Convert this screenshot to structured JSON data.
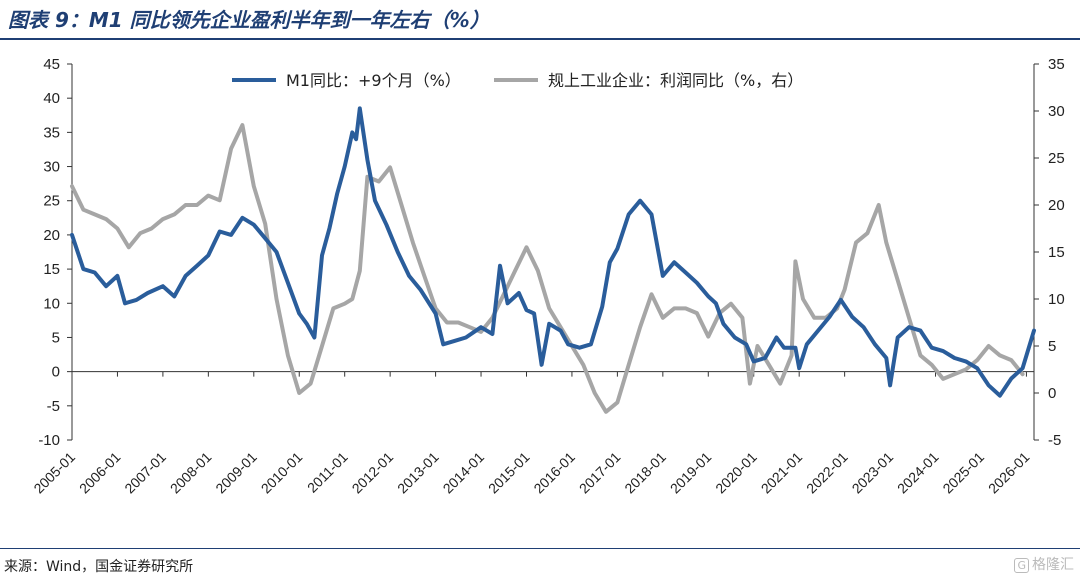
{
  "header": {
    "title": "图表 9：M1 同比领先企业盈利半年到一年左右（%）"
  },
  "footer": {
    "source": "来源：Wind，国金证券研究所",
    "watermark_text": "格隆汇"
  },
  "chart_data": {
    "type": "line",
    "legend_placement": "top",
    "grid": false,
    "left_axis": {
      "ylim": [
        -10,
        45
      ],
      "ticks": [
        45,
        40,
        35,
        30,
        25,
        20,
        15,
        10,
        5,
        0,
        -5,
        -10
      ]
    },
    "right_axis": {
      "ylim": [
        -5,
        35
      ],
      "ticks": [
        35,
        30,
        25,
        20,
        15,
        10,
        5,
        0,
        -5
      ]
    },
    "xlim": [
      "2005-01",
      "2026-03"
    ],
    "x_ticks": [
      "2005-01",
      "2006-01",
      "2007-01",
      "2008-01",
      "2009-01",
      "2010-01",
      "2011-01",
      "2012-01",
      "2013-01",
      "2014-01",
      "2015-01",
      "2016-01",
      "2017-01",
      "2018-01",
      "2019-01",
      "2020-01",
      "2021-01",
      "2022-01",
      "2023-01",
      "2024-01",
      "2025-01",
      "2026-01"
    ],
    "series": [
      {
        "name": "M1同比：+9个月（%）",
        "axis": "left",
        "color": "#2a5d9b",
        "points": [
          [
            "2005-01",
            20
          ],
          [
            "2005-04",
            15
          ],
          [
            "2005-07",
            14.5
          ],
          [
            "2005-10",
            12.5
          ],
          [
            "2006-01",
            14
          ],
          [
            "2006-03",
            10
          ],
          [
            "2006-06",
            10.5
          ],
          [
            "2006-09",
            11.5
          ],
          [
            "2007-01",
            12.5
          ],
          [
            "2007-04",
            11
          ],
          [
            "2007-07",
            14
          ],
          [
            "2007-10",
            15.5
          ],
          [
            "2008-01",
            17
          ],
          [
            "2008-04",
            20.5
          ],
          [
            "2008-07",
            20
          ],
          [
            "2008-10",
            22.5
          ],
          [
            "2009-01",
            21.5
          ],
          [
            "2009-04",
            19.5
          ],
          [
            "2009-07",
            17.5
          ],
          [
            "2009-10",
            13
          ],
          [
            "2010-01",
            8.5
          ],
          [
            "2010-03",
            7
          ],
          [
            "2010-05",
            5
          ],
          [
            "2010-07",
            17
          ],
          [
            "2010-09",
            21
          ],
          [
            "2010-11",
            26
          ],
          [
            "2011-01",
            30
          ],
          [
            "2011-03",
            35
          ],
          [
            "2011-04",
            34
          ],
          [
            "2011-05",
            38.5
          ],
          [
            "2011-07",
            31
          ],
          [
            "2011-09",
            25
          ],
          [
            "2011-12",
            21.5
          ],
          [
            "2012-03",
            17.5
          ],
          [
            "2012-06",
            14
          ],
          [
            "2012-09",
            12
          ],
          [
            "2013-01",
            8.5
          ],
          [
            "2013-03",
            4
          ],
          [
            "2013-06",
            4.5
          ],
          [
            "2013-09",
            5
          ],
          [
            "2014-01",
            6.5
          ],
          [
            "2014-04",
            5.5
          ],
          [
            "2014-06",
            15.5
          ],
          [
            "2014-08",
            10
          ],
          [
            "2014-11",
            11.5
          ],
          [
            "2015-01",
            9
          ],
          [
            "2015-03",
            8.5
          ],
          [
            "2015-05",
            1
          ],
          [
            "2015-07",
            7
          ],
          [
            "2015-10",
            6
          ],
          [
            "2015-12",
            4
          ],
          [
            "2016-03",
            3.5
          ],
          [
            "2016-06",
            4
          ],
          [
            "2016-09",
            9.5
          ],
          [
            "2016-11",
            16
          ],
          [
            "2017-01",
            18
          ],
          [
            "2017-04",
            23
          ],
          [
            "2017-07",
            25
          ],
          [
            "2017-10",
            23
          ],
          [
            "2018-01",
            14
          ],
          [
            "2018-04",
            16
          ],
          [
            "2018-07",
            14.5
          ],
          [
            "2018-10",
            13
          ],
          [
            "2019-01",
            11
          ],
          [
            "2019-03",
            10
          ],
          [
            "2019-05",
            7
          ],
          [
            "2019-08",
            5
          ],
          [
            "2019-11",
            4
          ],
          [
            "2020-01",
            1.5
          ],
          [
            "2020-04",
            2
          ],
          [
            "2020-07",
            5
          ],
          [
            "2020-09",
            3.5
          ],
          [
            "2020-12",
            3.5
          ],
          [
            "2021-01",
            0.5
          ],
          [
            "2021-03",
            4
          ],
          [
            "2021-06",
            6
          ],
          [
            "2021-09",
            8
          ],
          [
            "2021-12",
            10.5
          ],
          [
            "2022-03",
            8
          ],
          [
            "2022-06",
            6.5
          ],
          [
            "2022-09",
            4
          ],
          [
            "2022-12",
            2
          ],
          [
            "2023-01",
            -2
          ],
          [
            "2023-03",
            5
          ],
          [
            "2023-06",
            6.5
          ],
          [
            "2023-09",
            6
          ],
          [
            "2023-12",
            3.5
          ],
          [
            "2024-03",
            3
          ],
          [
            "2024-06",
            2
          ],
          [
            "2024-09",
            1.5
          ],
          [
            "2024-12",
            0.5
          ],
          [
            "2025-03",
            -2
          ],
          [
            "2025-06",
            -3.5
          ],
          [
            "2025-09",
            -1
          ],
          [
            "2025-12",
            0.5
          ],
          [
            "2026-03",
            6
          ]
        ]
      },
      {
        "name": "规上工业企业：利润同比（%，右）",
        "axis": "right",
        "color": "#a6a6a6",
        "points": [
          [
            "2005-01",
            22
          ],
          [
            "2005-04",
            19.5
          ],
          [
            "2005-07",
            19
          ],
          [
            "2005-10",
            18.5
          ],
          [
            "2006-01",
            17.5
          ],
          [
            "2006-04",
            15.5
          ],
          [
            "2006-07",
            17
          ],
          [
            "2006-10",
            17.5
          ],
          [
            "2007-01",
            18.5
          ],
          [
            "2007-04",
            19
          ],
          [
            "2007-07",
            20
          ],
          [
            "2007-10",
            20
          ],
          [
            "2008-01",
            21
          ],
          [
            "2008-04",
            20.5
          ],
          [
            "2008-07",
            26
          ],
          [
            "2008-10",
            28.5
          ],
          [
            "2009-01",
            22
          ],
          [
            "2009-04",
            18
          ],
          [
            "2009-07",
            10
          ],
          [
            "2009-10",
            4
          ],
          [
            "2010-01",
            0
          ],
          [
            "2010-04",
            1
          ],
          [
            "2010-07",
            5
          ],
          [
            "2010-10",
            9
          ],
          [
            "2011-01",
            9.5
          ],
          [
            "2011-03",
            10
          ],
          [
            "2011-05",
            13
          ],
          [
            "2011-07",
            23
          ],
          [
            "2011-10",
            22.5
          ],
          [
            "2012-01",
            24
          ],
          [
            "2012-04",
            20
          ],
          [
            "2012-07",
            16
          ],
          [
            "2012-10",
            12.5
          ],
          [
            "2013-01",
            9
          ],
          [
            "2013-04",
            7.5
          ],
          [
            "2013-07",
            7.5
          ],
          [
            "2013-10",
            7
          ],
          [
            "2014-01",
            6.5
          ],
          [
            "2014-04",
            8
          ],
          [
            "2014-07",
            10.5
          ],
          [
            "2014-10",
            13
          ],
          [
            "2015-01",
            15.5
          ],
          [
            "2015-04",
            13
          ],
          [
            "2015-07",
            9
          ],
          [
            "2015-10",
            7
          ],
          [
            "2016-01",
            5
          ],
          [
            "2016-04",
            3
          ],
          [
            "2016-07",
            0
          ],
          [
            "2016-10",
            -2
          ],
          [
            "2017-01",
            -1
          ],
          [
            "2017-04",
            3
          ],
          [
            "2017-07",
            7
          ],
          [
            "2017-10",
            10.5
          ],
          [
            "2018-01",
            8
          ],
          [
            "2018-04",
            9
          ],
          [
            "2018-07",
            9
          ],
          [
            "2018-10",
            8.5
          ],
          [
            "2019-01",
            6
          ],
          [
            "2019-04",
            8.5
          ],
          [
            "2019-07",
            9.5
          ],
          [
            "2019-10",
            8
          ],
          [
            "2019-12",
            1
          ],
          [
            "2020-02",
            5
          ],
          [
            "2020-05",
            3
          ],
          [
            "2020-08",
            1
          ],
          [
            "2020-11",
            4
          ],
          [
            "2020-12",
            14
          ],
          [
            "2021-02",
            10
          ],
          [
            "2021-05",
            8
          ],
          [
            "2021-08",
            8
          ],
          [
            "2021-11",
            9
          ],
          [
            "2022-01",
            11
          ],
          [
            "2022-04",
            16
          ],
          [
            "2022-07",
            17
          ],
          [
            "2022-10",
            20
          ],
          [
            "2022-12",
            16
          ],
          [
            "2023-03",
            12
          ],
          [
            "2023-06",
            8
          ],
          [
            "2023-09",
            4
          ],
          [
            "2023-12",
            3
          ],
          [
            "2024-03",
            1.5
          ],
          [
            "2024-06",
            2
          ],
          [
            "2024-09",
            2.5
          ],
          [
            "2024-12",
            3.5
          ],
          [
            "2025-03",
            5
          ],
          [
            "2025-06",
            4
          ],
          [
            "2025-09",
            3.5
          ],
          [
            "2025-12",
            2
          ]
        ]
      }
    ]
  }
}
